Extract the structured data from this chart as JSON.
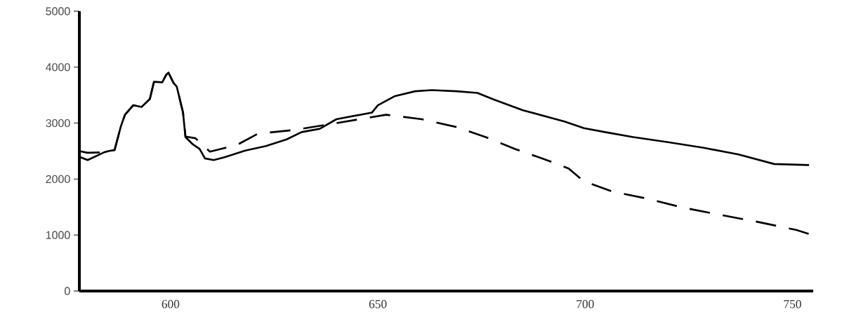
{
  "chart_data": {
    "type": "line",
    "xlim": [
      578,
      755
    ],
    "ylim": [
      0,
      5000
    ],
    "xticks": [
      600,
      650,
      700,
      750
    ],
    "yticks": [
      0,
      1000,
      2000,
      3000,
      4000,
      5000
    ],
    "grid": false,
    "series": [
      {
        "color": "#000000",
        "line_style": "solid",
        "x": [
          578,
          580,
          584,
          585,
          586.5,
          588,
          589,
          591,
          593,
          595,
          596,
          598,
          599,
          599.5,
          600.7,
          601.5,
          603,
          603.6,
          605.4,
          607,
          608.3,
          610.4,
          613,
          618,
          623,
          628,
          631.6,
          636,
          640,
          648.6,
          650,
          654,
          659,
          663,
          669,
          674,
          678,
          685,
          695,
          699.7,
          704.8,
          711.6,
          720,
          728.6,
          737,
          745.6,
          754
        ],
        "values": [
          2400,
          2340,
          2480,
          2500,
          2520,
          2940,
          3150,
          3320,
          3290,
          3430,
          3740,
          3730,
          3870,
          3900,
          3720,
          3650,
          3190,
          2750,
          2620,
          2540,
          2370,
          2340,
          2390,
          2510,
          2590,
          2710,
          2840,
          2900,
          3070,
          3190,
          3320,
          3480,
          3570,
          3590,
          3570,
          3540,
          3420,
          3230,
          3030,
          2910,
          2840,
          2750,
          2660,
          2560,
          2440,
          2270,
          2250
        ]
      },
      {
        "color": "#000000",
        "line_style": "dashed",
        "x": [
          578,
          580,
          584,
          585,
          586.5,
          588,
          589,
          591,
          593,
          595,
          596,
          598,
          599,
          599.5,
          600.7,
          601.5,
          603,
          603.6,
          606,
          609.5,
          616,
          621,
          630,
          640,
          652,
          660.6,
          669,
          676,
          683,
          690,
          696,
          699.7,
          706.5,
          715,
          723.6,
          732,
          742,
          751,
          754
        ],
        "values": [
          2500,
          2470,
          2480,
          2500,
          2520,
          2940,
          3150,
          3320,
          3290,
          3430,
          3740,
          3730,
          3870,
          3900,
          3720,
          3650,
          3190,
          2760,
          2730,
          2490,
          2610,
          2810,
          2880,
          3000,
          3150,
          3070,
          2930,
          2750,
          2540,
          2360,
          2190,
          1960,
          1780,
          1650,
          1490,
          1370,
          1230,
          1090,
          1020
        ]
      }
    ]
  }
}
